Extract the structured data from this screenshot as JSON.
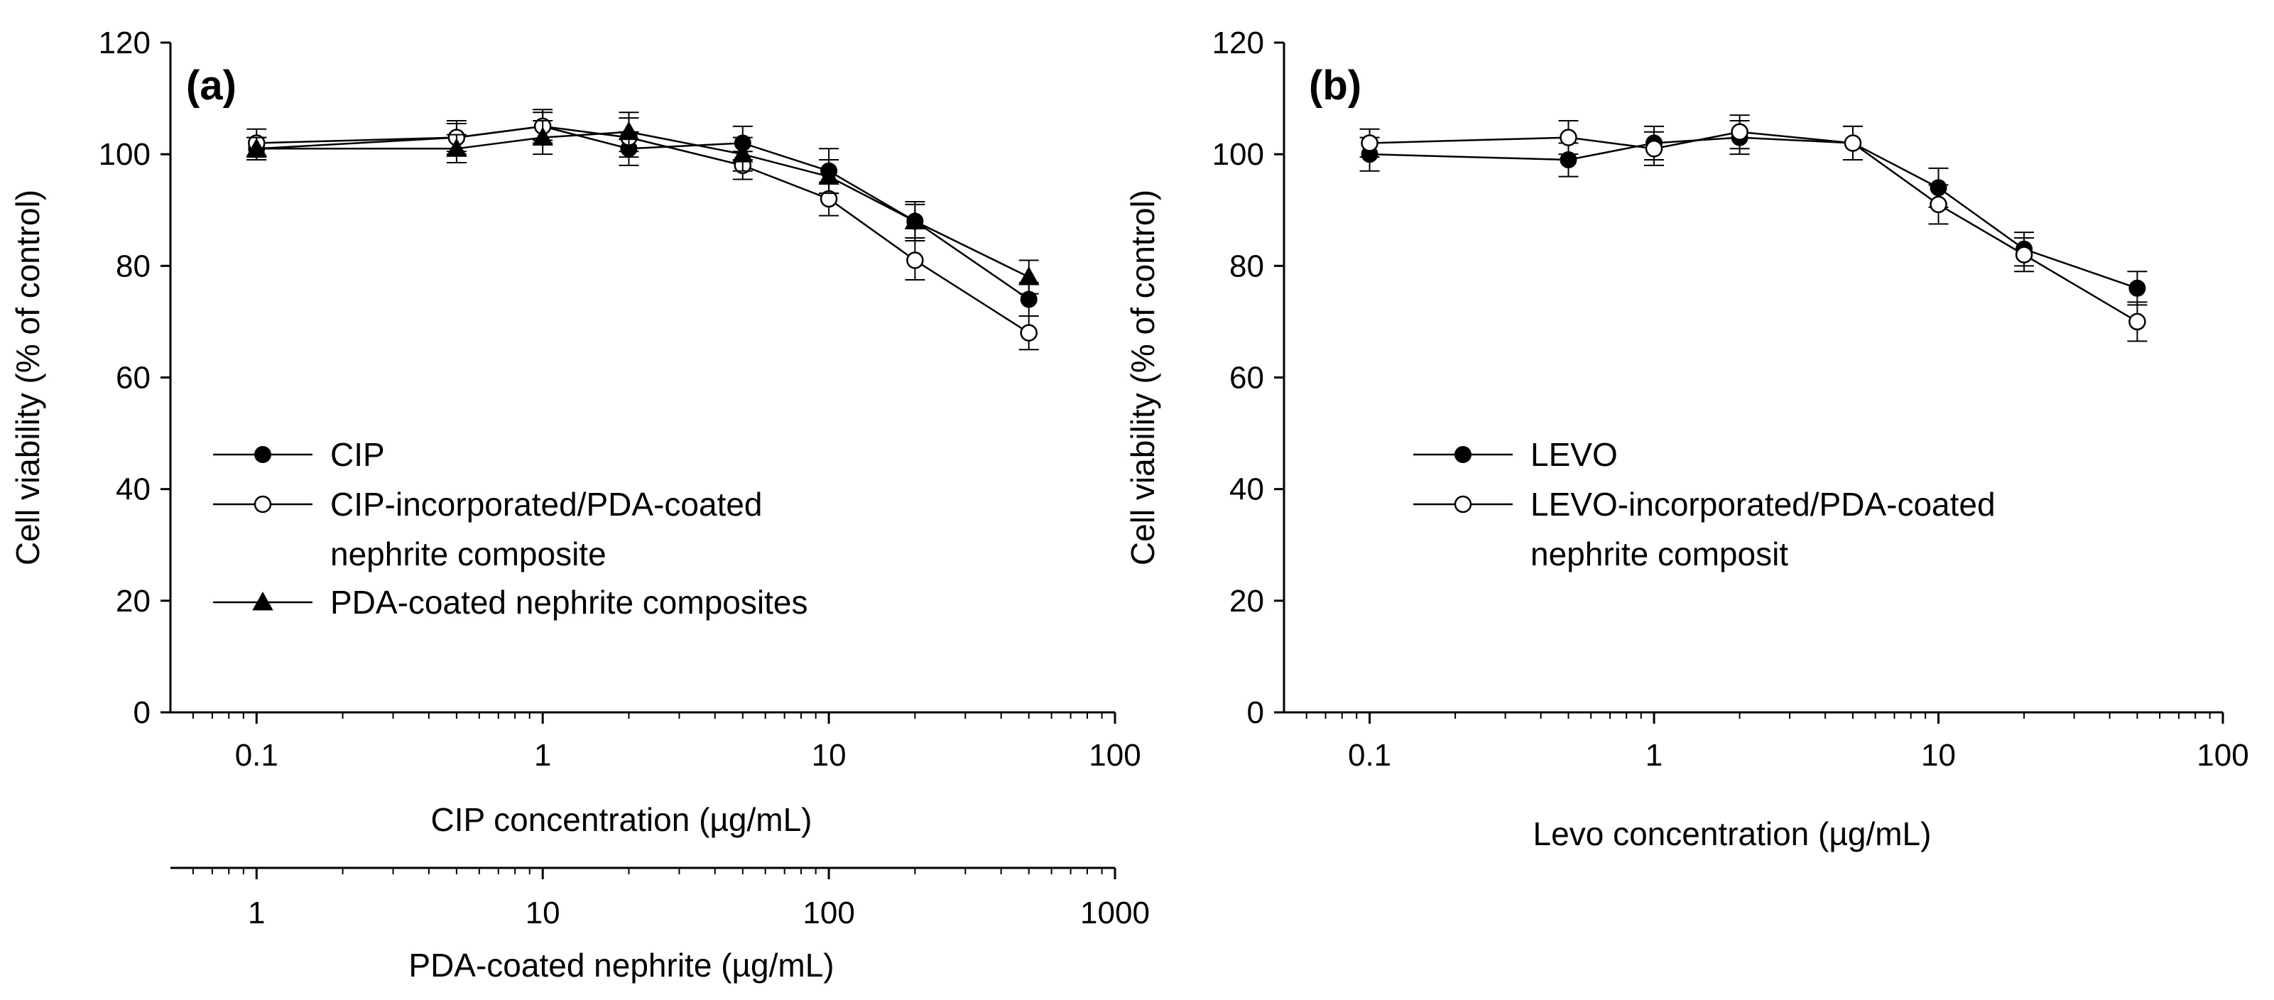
{
  "chart_data": [
    {
      "type": "line",
      "panel_label": "(a)",
      "x_scale": "log",
      "xlim": [
        0.05,
        100
      ],
      "ylim": [
        0,
        120
      ],
      "x_ticks": [
        0.1,
        1,
        10,
        100
      ],
      "x_tick_labels": [
        "0.1",
        "1",
        "10",
        "100"
      ],
      "y_ticks": [
        0,
        20,
        40,
        60,
        80,
        100,
        120
      ],
      "y_tick_labels": [
        "0",
        "20",
        "40",
        "60",
        "80",
        "100",
        "120"
      ],
      "xlabel": "CIP concentration (µg/mL)",
      "ylabel": "Cell viability (% of control)",
      "secondary_x_axis": {
        "xlim": [
          0.5,
          1000
        ],
        "ticks": [
          1,
          10,
          100,
          1000
        ],
        "tick_labels": [
          "1",
          "10",
          "100",
          "1000"
        ],
        "label": "PDA-coated nephrite (µg/mL)"
      },
      "legend": [
        {
          "label": "CIP",
          "marker": "filled-circle"
        },
        {
          "label": "CIP-incorporated/PDA-coated",
          "label_line2": "nephrite composite",
          "marker": "open-circle"
        },
        {
          "label": "PDA-coated nephrite composites",
          "marker": "filled-triangle"
        }
      ],
      "x": [
        0.1,
        0.5,
        1,
        2,
        5,
        10,
        20,
        50
      ],
      "series": [
        {
          "name": "CIP",
          "marker": "filled-circle",
          "values": [
            101,
            103,
            105,
            101,
            102,
            97,
            88,
            74
          ],
          "errors": [
            2,
            2.5,
            2.5,
            3,
            3,
            4,
            3.5,
            3
          ]
        },
        {
          "name": "CIP-incorporated/PDA-coated nephrite composite",
          "marker": "open-circle",
          "values": [
            102,
            103,
            105,
            103,
            98,
            92,
            81,
            68
          ],
          "errors": [
            2.5,
            3,
            3,
            3.5,
            2.5,
            3,
            3.5,
            3
          ]
        },
        {
          "name": "PDA-coated nephrite composites",
          "marker": "filled-triangle",
          "values": [
            101,
            101,
            103,
            104,
            100,
            96,
            88,
            78
          ],
          "errors": [
            2,
            2.5,
            3,
            3.5,
            3,
            3,
            3,
            3
          ]
        }
      ]
    },
    {
      "type": "line",
      "panel_label": "(b)",
      "x_scale": "log",
      "xlim": [
        0.05,
        100
      ],
      "ylim": [
        0,
        120
      ],
      "x_ticks": [
        0.1,
        1,
        10,
        100
      ],
      "x_tick_labels": [
        "0.1",
        "1",
        "10",
        "100"
      ],
      "y_ticks": [
        0,
        20,
        40,
        60,
        80,
        100,
        120
      ],
      "y_tick_labels": [
        "0",
        "20",
        "40",
        "60",
        "80",
        "100",
        "120"
      ],
      "xlabel": "Levo concentration (µg/mL)",
      "ylabel": "Cell viability (% of control)",
      "legend": [
        {
          "label": "LEVO",
          "marker": "filled-circle"
        },
        {
          "label": "LEVO-incorporated/PDA-coated",
          "label_line2": "nephrite composit",
          "marker": "open-circle"
        }
      ],
      "x": [
        0.1,
        0.5,
        1,
        2,
        5,
        10,
        20,
        50
      ],
      "series": [
        {
          "name": "LEVO",
          "marker": "filled-circle",
          "values": [
            100,
            99,
            102,
            103,
            102,
            94,
            83,
            76
          ],
          "errors": [
            3,
            3,
            3,
            3,
            3,
            3.5,
            3,
            3
          ]
        },
        {
          "name": "LEVO-incorporated/PDA-coated nephrite composit",
          "marker": "open-circle",
          "values": [
            102,
            103,
            101,
            104,
            102,
            91,
            82,
            70
          ],
          "errors": [
            2.5,
            3,
            3,
            3,
            3,
            3.5,
            3,
            3.5
          ]
        }
      ]
    }
  ]
}
